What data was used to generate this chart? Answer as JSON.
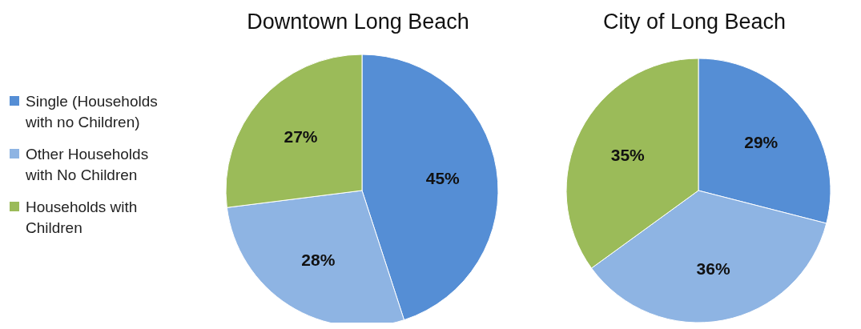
{
  "chart_data": [
    {
      "type": "pie",
      "title": "Downtown Long Beach",
      "categories": [
        "Single (Households with no Children)",
        "Other Households with No Children",
        "Households with Children"
      ],
      "values": [
        45,
        28,
        27
      ],
      "value_labels": [
        "45%",
        "28%",
        "27%"
      ],
      "colors": [
        "#558ed5",
        "#8eb4e3",
        "#9bbb59"
      ],
      "legend": "left"
    },
    {
      "type": "pie",
      "title": "City of Long Beach",
      "categories": [
        null,
        null,
        null
      ],
      "values": [
        29,
        36,
        35
      ],
      "value_labels": [
        "29%",
        "36%",
        "35%"
      ],
      "colors": [
        "#558ed5",
        "#8eb4e3",
        "#9bbb59"
      ]
    }
  ]
}
